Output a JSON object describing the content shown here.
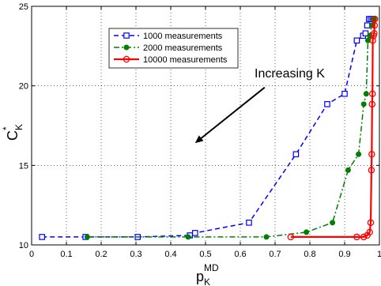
{
  "chart_data": {
    "type": "line",
    "xlabel": "p",
    "xlabel_sub": "K",
    "xlabel_sup": "MD",
    "ylabel": "C",
    "ylabel_sub": "K",
    "ylabel_sup": "*",
    "xlim": [
      0,
      1
    ],
    "ylim": [
      10,
      25
    ],
    "xticks": [
      0,
      0.1,
      0.2,
      0.3,
      0.4,
      0.5,
      0.6,
      0.7,
      0.8,
      0.9,
      1
    ],
    "xtick_labels": [
      "0",
      "0.1",
      "0.2",
      "0.3",
      "0.4",
      "0.5",
      "0.6",
      "0.7",
      "0.8",
      "0.9",
      "1"
    ],
    "yticks": [
      10,
      15,
      20,
      25
    ],
    "ytick_labels": [
      "10",
      "15",
      "20",
      "25"
    ],
    "grid": true,
    "legend_position": "top-left",
    "annotation": {
      "text": "Increasing K",
      "arrow_from": [
        0.67,
        19.9
      ],
      "arrow_to": [
        0.47,
        16.4
      ]
    },
    "series": [
      {
        "name": "1000 measurements",
        "color": "#0000ff",
        "dash": "dashed",
        "marker": "square",
        "x": [
          0.03,
          0.155,
          0.305,
          0.455,
          0.47,
          0.625,
          0.76,
          0.85,
          0.9,
          0.935,
          0.953,
          0.96,
          0.965,
          0.97,
          0.975,
          0.98
        ],
        "y": [
          10.5,
          10.5,
          10.5,
          10.6,
          10.75,
          11.4,
          15.7,
          18.85,
          19.5,
          22.85,
          23.15,
          23.3,
          23.8,
          24.2,
          24.2,
          24.2
        ]
      },
      {
        "name": "2000 measurements",
        "color": "#008000",
        "dash": "dashdot",
        "marker": "dot",
        "x": [
          0.16,
          0.45,
          0.675,
          0.79,
          0.865,
          0.91,
          0.94,
          0.955,
          0.962,
          0.967,
          0.972,
          0.978,
          0.982,
          0.985
        ],
        "y": [
          10.5,
          10.5,
          10.5,
          10.8,
          11.4,
          14.7,
          15.7,
          18.85,
          19.5,
          22.85,
          23.15,
          23.8,
          24.2,
          24.2
        ]
      },
      {
        "name": "10000 measurements",
        "color": "#ff0000",
        "dash": "solid",
        "marker": "circle",
        "x": [
          0.745,
          0.935,
          0.955,
          0.965,
          0.972,
          0.975,
          0.977,
          0.978,
          0.979,
          0.98,
          0.981,
          0.983,
          0.985,
          0.986,
          0.987
        ],
        "y": [
          10.5,
          10.5,
          10.5,
          10.6,
          10.8,
          11.4,
          14.7,
          15.7,
          18.85,
          19.5,
          22.85,
          23.15,
          23.3,
          23.8,
          24.2
        ]
      }
    ]
  }
}
